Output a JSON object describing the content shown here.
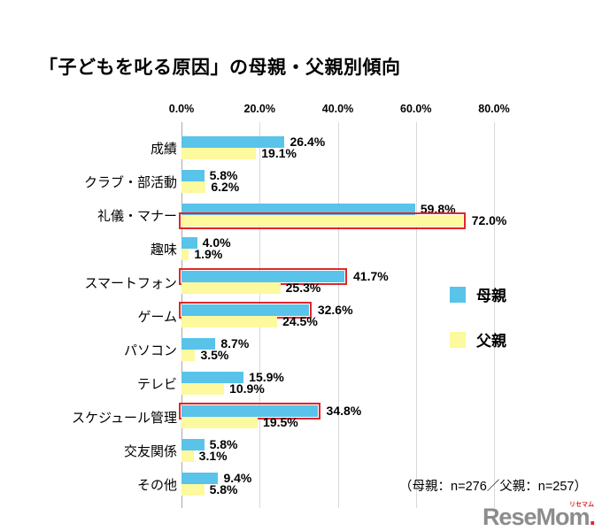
{
  "title": "「子どもを叱る原因」の母親・父親別傾向",
  "note": "（母親：n=276／父親：n=257）",
  "logo": {
    "text": "ReseMom",
    "sub": "リセマム",
    "dot": "."
  },
  "legend": [
    {
      "label": "母親",
      "color": "#59c3ea"
    },
    {
      "label": "父親",
      "color": "#fdf99e"
    }
  ],
  "chart_data": {
    "type": "bar",
    "orientation": "horizontal",
    "title": "「子どもを叱る原因」の母親・父親別傾向",
    "categories": [
      "成績",
      "クラブ・部活動",
      "礼儀・マナー",
      "趣味",
      "スマートフォン",
      "ゲーム",
      "パソコン",
      "テレビ",
      "スケジュール管理",
      "交友関係",
      "その他"
    ],
    "series": [
      {
        "name": "母親",
        "key": "mother",
        "color": "#59c3ea",
        "values": [
          26.4,
          5.8,
          59.8,
          4.0,
          41.7,
          32.6,
          8.7,
          15.9,
          34.8,
          5.8,
          9.4
        ],
        "highlight": [
          false,
          false,
          false,
          false,
          true,
          true,
          false,
          false,
          true,
          false,
          false
        ]
      },
      {
        "name": "父親",
        "key": "father",
        "color": "#fdf99e",
        "values": [
          19.1,
          6.2,
          72.0,
          1.9,
          25.3,
          24.5,
          3.5,
          10.9,
          19.5,
          3.1,
          5.8
        ],
        "highlight": [
          false,
          false,
          true,
          false,
          false,
          false,
          false,
          false,
          false,
          false,
          false
        ]
      }
    ],
    "xlim": [
      0,
      80
    ],
    "ticks": [
      "0.0%",
      "20.0%",
      "40.0%",
      "60.0%",
      "80.0%"
    ],
    "grid": true,
    "legend_position": "right",
    "highlight_color": "#e0262a",
    "value_suffix": "%",
    "sample_note": "（母親：n=276／父親：n=257）"
  }
}
